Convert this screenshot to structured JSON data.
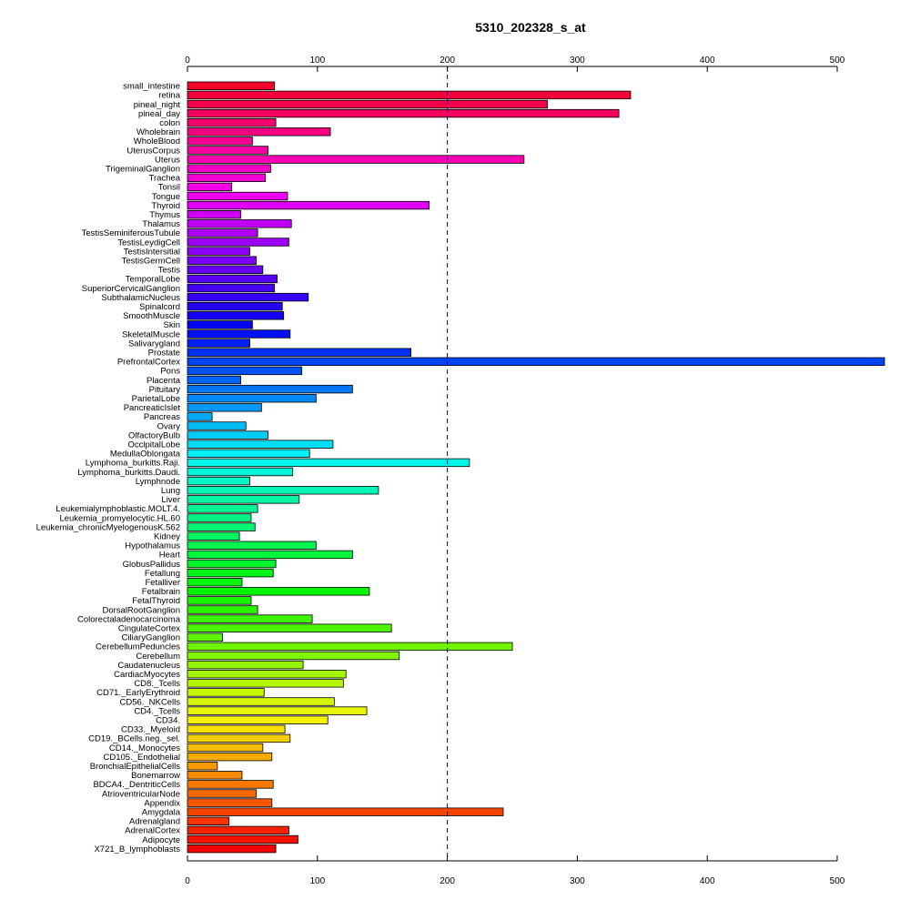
{
  "chart_data": {
    "type": "bar",
    "orientation": "horizontal",
    "title": "5310_202328_s_at",
    "xlabel": "",
    "ylabel": "",
    "xlim": [
      0,
      500
    ],
    "xticks": [
      0,
      100,
      200,
      300,
      400,
      500
    ],
    "reference_line": 200,
    "grid": false,
    "legend": "none",
    "categories": [
      "small_intestine",
      "retina",
      "pineal_night",
      "pineal_day",
      "colon",
      "Wholebrain",
      "WholeBlood",
      "UterusCorpus",
      "Uterus",
      "TrigeminalGanglion",
      "Trachea",
      "Tonsil",
      "Tongue",
      "Thyroid",
      "Thymus",
      "Thalamus",
      "TestisSeminiferousTubule",
      "TestisLeydigCell",
      "TestisIntersitial",
      "TestisGermCell",
      "Testis",
      "TemporalLobe",
      "SuperiorCervicalGanglion",
      "SubthalamicNucleus",
      "Spinalcord",
      "SmoothMuscle",
      "Skin",
      "SkeletalMuscle",
      "Salivarygland",
      "Prostate",
      "PrefrontalCortex",
      "Pons",
      "Placenta",
      "Pituitary",
      "ParietalLobe",
      "PancreaticIslet",
      "Pancreas",
      "Ovary",
      "OlfactoryBulb",
      "OccipitalLobe",
      "MedullaOblongata",
      "Lymphoma_burkitts.Raji.",
      "Lymphoma_burkitts.Daudi.",
      "Lymphnode",
      "Lung",
      "Liver",
      "Leukemialymphoblastic.MOLT.4.",
      "Leukemia_promyelocytic.HL.60",
      "Leukemia_chronicMyelogenousK.562",
      "Kidney",
      "Hypothalamus",
      "Heart",
      "GlobusPallidus",
      "Fetallung",
      "Fetalliver",
      "Fetalbrain",
      "FetalThyroid",
      "DorsalRootGanglion",
      "Colorectaladenocarcinoma",
      "CingulateCortex",
      "CiliaryGanglion",
      "CerebellumPeduncles",
      "Cerebellum",
      "Caudatenucleus",
      "CardiacMyocytes",
      "CD8._Tcells",
      "CD71._EarlyErythroid",
      "CD56._NKCells",
      "CD4._Tcells",
      "CD34.",
      "CD33._Myeloid",
      "CD19._BCells.neg._sel.",
      "CD14._Monocytes",
      "CD105._Endothelial",
      "BronchialEpithelialCells",
      "Bonemarrow",
      "BDCA4._DentriticCells",
      "AtrioventricularNode",
      "Appendix",
      "Amygdala",
      "Adrenalgland",
      "AdrenalCortex",
      "Adipocyte",
      "X721_B_lymphoblasts"
    ],
    "values": [
      67,
      341,
      277,
      332,
      68,
      110,
      50,
      62,
      259,
      64,
      60,
      34,
      77,
      186,
      41,
      80,
      54,
      78,
      48,
      53,
      58,
      69,
      67,
      93,
      73,
      74,
      50,
      79,
      48,
      172,
      538,
      88,
      41,
      127,
      99,
      57,
      19,
      45,
      62,
      112,
      94,
      217,
      81,
      48,
      147,
      86,
      54,
      49,
      52,
      40,
      99,
      127,
      68,
      66,
      42,
      140,
      49,
      54,
      96,
      157,
      27,
      250,
      163,
      89,
      122,
      120,
      59,
      113,
      138,
      108,
      75,
      79,
      58,
      65,
      23,
      42,
      66,
      53,
      65,
      243,
      32,
      78,
      85,
      68
    ]
  }
}
